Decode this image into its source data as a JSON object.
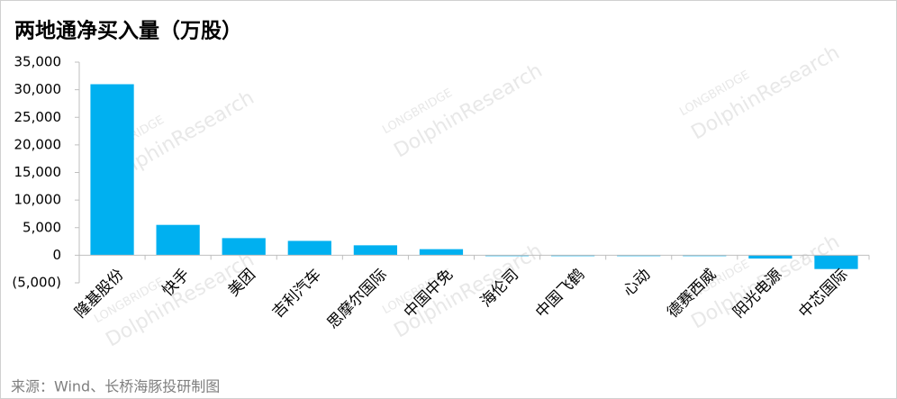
{
  "chart_data": {
    "type": "bar",
    "title": "两地通净买入量（万股）",
    "source": "来源：Wind、长桥海豚投研制图",
    "watermark": [
      "LONGBRIDGE",
      "DolphinResearch"
    ],
    "categories": [
      "隆基股份",
      "快手",
      "美团",
      "吉利汽车",
      "思摩尔国际",
      "中国中免",
      "海伦司",
      "中国飞鹤",
      "心动",
      "德赛西威",
      "阳光电源",
      "中芯国际"
    ],
    "values": [
      31000,
      5500,
      3100,
      2600,
      1800,
      1100,
      -100,
      -100,
      -100,
      -100,
      -600,
      -2500
    ],
    "color": "#00b0f0",
    "ylim": [
      -5000,
      35000
    ],
    "yticks": [
      {
        "value": -5000,
        "label": "(5,000)"
      },
      0,
      {
        "value": 5000,
        "label": "5,000"
      },
      {
        "value": 10000,
        "label": "10,000"
      },
      {
        "value": 15000,
        "label": "15,000"
      },
      {
        "value": 20000,
        "label": "20,000"
      },
      {
        "value": 25000,
        "label": "25,000"
      },
      {
        "value": 30000,
        "label": "30,000"
      },
      {
        "value": 35000,
        "label": "35,000"
      }
    ],
    "grid": false
  }
}
